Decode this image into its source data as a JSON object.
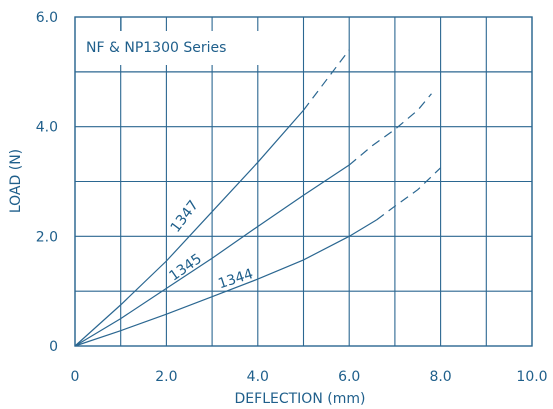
{
  "chart_data": {
    "type": "line",
    "title": "NF & NP1300 Series",
    "xlabel": "DEFLECTION (mm)",
    "ylabel": "LOAD (N)",
    "xlim": [
      0,
      10
    ],
    "ylim": [
      0,
      6
    ],
    "grid": true,
    "x_tick_labels": [
      {
        "value": 0,
        "label": "0"
      },
      {
        "value": 2,
        "label": "2.0"
      },
      {
        "value": 4,
        "label": "4.0"
      },
      {
        "value": 6,
        "label": "6.0"
      },
      {
        "value": 8,
        "label": "8.0"
      },
      {
        "value": 10,
        "label": "10.0"
      }
    ],
    "y_tick_labels": [
      {
        "value": 0,
        "label": "0"
      },
      {
        "value": 2,
        "label": "2.0"
      },
      {
        "value": 4,
        "label": "4.0"
      },
      {
        "value": 6,
        "label": "6.0"
      }
    ],
    "series": [
      {
        "name": "1347",
        "solid": [
          [
            0,
            0
          ],
          [
            1,
            0.75
          ],
          [
            2,
            1.55
          ],
          [
            3,
            2.45
          ],
          [
            4,
            3.35
          ],
          [
            5,
            4.3
          ]
        ],
        "dashed": [
          [
            5,
            4.3
          ],
          [
            5.5,
            4.85
          ],
          [
            6,
            5.4
          ]
        ]
      },
      {
        "name": "1345",
        "solid": [
          [
            0,
            0
          ],
          [
            1,
            0.5
          ],
          [
            2,
            1.05
          ],
          [
            3,
            1.6
          ],
          [
            4,
            2.18
          ],
          [
            5,
            2.75
          ],
          [
            6,
            3.3
          ]
        ],
        "dashed": [
          [
            6,
            3.3
          ],
          [
            6.5,
            3.65
          ],
          [
            7,
            3.95
          ],
          [
            7.5,
            4.3
          ],
          [
            7.8,
            4.6
          ]
        ]
      },
      {
        "name": "1344",
        "solid": [
          [
            0,
            0
          ],
          [
            1,
            0.28
          ],
          [
            2,
            0.58
          ],
          [
            3,
            0.9
          ],
          [
            4,
            1.22
          ],
          [
            5,
            1.57
          ],
          [
            6,
            2.0
          ],
          [
            6.6,
            2.3
          ]
        ],
        "dashed": [
          [
            6.6,
            2.3
          ],
          [
            7,
            2.55
          ],
          [
            7.5,
            2.85
          ],
          [
            8,
            3.25
          ]
        ]
      }
    ],
    "colors": {
      "line": "#2b6791",
      "text": "#1f5f8b",
      "grid": "#2b6791"
    }
  }
}
